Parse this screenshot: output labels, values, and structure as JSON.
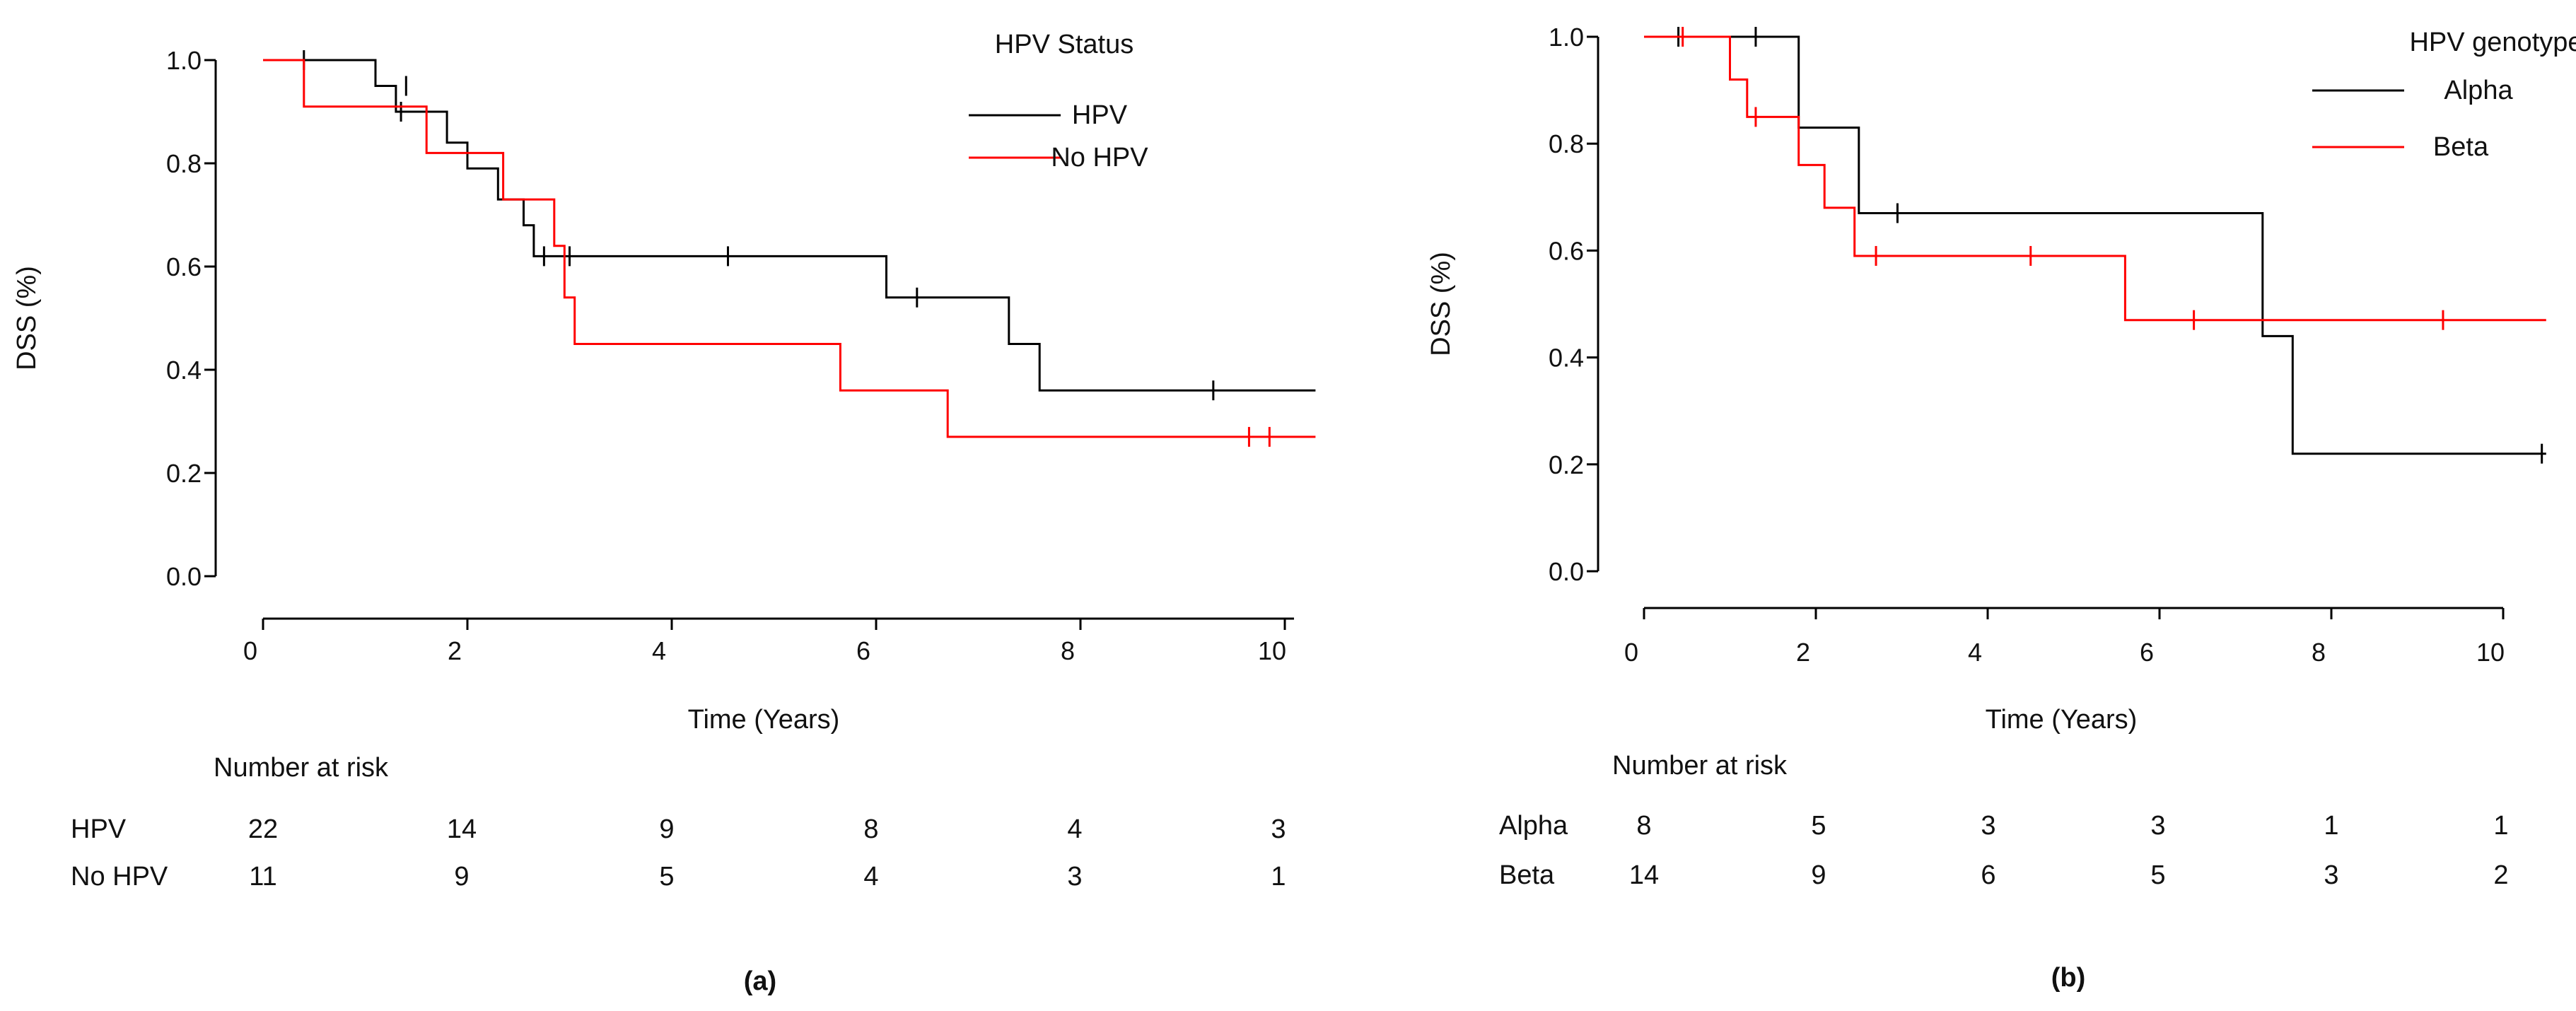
{
  "chart_data": [
    {
      "type": "line",
      "panel_label": "(a)",
      "xlabel": "Time (Years)",
      "ylabel": "DSS (%)",
      "xlim": [
        0,
        10.3
      ],
      "ylim": [
        0,
        1.0
      ],
      "x_ticks": [
        "0",
        "2",
        "4",
        "6",
        "8",
        "10"
      ],
      "y_ticks": [
        "0.0",
        "0.2",
        "0.4",
        "0.6",
        "0.8",
        "1.0"
      ],
      "legend_title": "HPV Status",
      "legend_position": "top-right",
      "series": [
        {
          "name": "HPV",
          "color": "#000000",
          "steps": [
            [
              0.4,
              1.0
            ],
            [
              1.1,
              0.95
            ],
            [
              1.3,
              0.9
            ],
            [
              1.8,
              0.84
            ],
            [
              2.0,
              0.79
            ],
            [
              2.3,
              0.73
            ],
            [
              2.55,
              0.68
            ],
            [
              2.65,
              0.62
            ],
            [
              6.1,
              0.54
            ],
            [
              7.3,
              0.45
            ],
            [
              7.6,
              0.36
            ]
          ],
          "end_x": 10.3,
          "censored": [
            [
              0.4,
              1.0
            ],
            [
              1.4,
              0.95
            ],
            [
              1.35,
              0.9
            ],
            [
              2.75,
              0.62
            ],
            [
              3.0,
              0.62
            ],
            [
              4.55,
              0.62
            ],
            [
              6.4,
              0.54
            ],
            [
              9.3,
              0.36
            ]
          ]
        },
        {
          "name": "No HPV",
          "color": "#ff0000",
          "steps": [
            [
              0.0,
              1.0
            ],
            [
              0.4,
              0.91
            ],
            [
              1.6,
              0.82
            ],
            [
              2.35,
              0.73
            ],
            [
              2.85,
              0.64
            ],
            [
              2.95,
              0.54
            ],
            [
              3.05,
              0.45
            ],
            [
              5.65,
              0.36
            ],
            [
              6.7,
              0.27
            ]
          ],
          "end_x": 10.3,
          "censored": [
            [
              9.65,
              0.27
            ],
            [
              9.85,
              0.27
            ]
          ]
        }
      ],
      "risk_table": {
        "title": "Number at risk",
        "times": [
          0,
          2,
          4,
          6,
          8,
          10
        ],
        "rows": [
          {
            "label": "HPV",
            "values": [
              "22",
              "14",
              "9",
              "8",
              "4",
              "3"
            ]
          },
          {
            "label": "No HPV",
            "values": [
              "11",
              "9",
              "5",
              "4",
              "3",
              "1"
            ]
          }
        ]
      }
    },
    {
      "type": "line",
      "panel_label": "(b)",
      "xlabel": "Time (Years)",
      "ylabel": "DSS (%)",
      "xlim": [
        0,
        10.5
      ],
      "ylim": [
        0,
        1.0
      ],
      "x_ticks": [
        "0",
        "2",
        "4",
        "6",
        "8",
        "10"
      ],
      "y_ticks": [
        "0.0",
        "0.2",
        "0.4",
        "0.6",
        "0.8",
        "1.0"
      ],
      "legend_title": "HPV genotype",
      "legend_position": "top-right",
      "series": [
        {
          "name": "Alpha",
          "color": "#000000",
          "steps": [
            [
              0.4,
              1.0
            ],
            [
              1.8,
              0.83
            ],
            [
              2.5,
              0.67
            ],
            [
              7.2,
              0.44
            ],
            [
              7.55,
              0.22
            ]
          ],
          "end_x": 10.5,
          "censored": [
            [
              0.4,
              1.0
            ],
            [
              1.3,
              1.0
            ],
            [
              2.95,
              0.67
            ],
            [
              10.45,
              0.22
            ]
          ]
        },
        {
          "name": "Beta",
          "color": "#ff0000",
          "steps": [
            [
              0.0,
              1.0
            ],
            [
              1.0,
              0.92
            ],
            [
              1.2,
              0.85
            ],
            [
              1.8,
              0.76
            ],
            [
              2.1,
              0.68
            ],
            [
              2.45,
              0.59
            ],
            [
              5.6,
              0.47
            ]
          ],
          "end_x": 10.5,
          "censored": [
            [
              0.45,
              1.0
            ],
            [
              1.3,
              0.85
            ],
            [
              2.7,
              0.59
            ],
            [
              4.5,
              0.59
            ],
            [
              6.4,
              0.47
            ],
            [
              9.3,
              0.47
            ]
          ]
        }
      ],
      "risk_table": {
        "title": "Number at risk",
        "times": [
          0,
          2,
          4,
          6,
          8,
          10
        ],
        "rows": [
          {
            "label": "Alpha",
            "values": [
              "8",
              "5",
              "3",
              "3",
              "1",
              "1"
            ]
          },
          {
            "label": "Beta",
            "values": [
              "14",
              "9",
              "6",
              "5",
              "3",
              "2"
            ]
          }
        ]
      }
    }
  ]
}
